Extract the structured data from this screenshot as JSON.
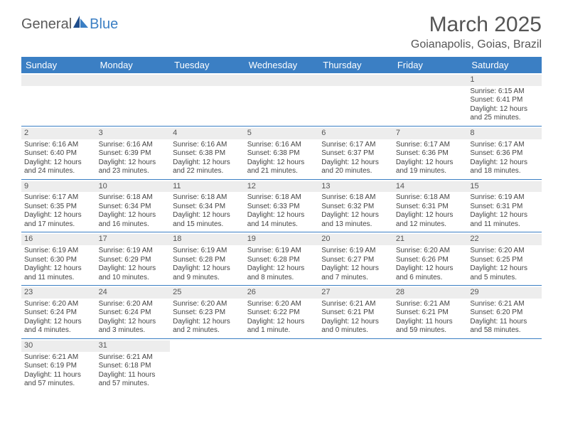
{
  "logo": {
    "text1": "General",
    "text2": "Blue"
  },
  "title": "March 2025",
  "location": "Goianapolis, Goias, Brazil",
  "colors": {
    "header_bg": "#3b7fc4",
    "header_fg": "#ffffff",
    "daynum_bg": "#ededed",
    "row_border": "#3b7fc4",
    "text": "#444444"
  },
  "weekdays": [
    "Sunday",
    "Monday",
    "Tuesday",
    "Wednesday",
    "Thursday",
    "Friday",
    "Saturday"
  ],
  "weeks": [
    [
      null,
      null,
      null,
      null,
      null,
      null,
      {
        "n": "1",
        "sr": "Sunrise: 6:15 AM",
        "ss": "Sunset: 6:41 PM",
        "d1": "Daylight: 12 hours",
        "d2": "and 25 minutes."
      }
    ],
    [
      {
        "n": "2",
        "sr": "Sunrise: 6:16 AM",
        "ss": "Sunset: 6:40 PM",
        "d1": "Daylight: 12 hours",
        "d2": "and 24 minutes."
      },
      {
        "n": "3",
        "sr": "Sunrise: 6:16 AM",
        "ss": "Sunset: 6:39 PM",
        "d1": "Daylight: 12 hours",
        "d2": "and 23 minutes."
      },
      {
        "n": "4",
        "sr": "Sunrise: 6:16 AM",
        "ss": "Sunset: 6:38 PM",
        "d1": "Daylight: 12 hours",
        "d2": "and 22 minutes."
      },
      {
        "n": "5",
        "sr": "Sunrise: 6:16 AM",
        "ss": "Sunset: 6:38 PM",
        "d1": "Daylight: 12 hours",
        "d2": "and 21 minutes."
      },
      {
        "n": "6",
        "sr": "Sunrise: 6:17 AM",
        "ss": "Sunset: 6:37 PM",
        "d1": "Daylight: 12 hours",
        "d2": "and 20 minutes."
      },
      {
        "n": "7",
        "sr": "Sunrise: 6:17 AM",
        "ss": "Sunset: 6:36 PM",
        "d1": "Daylight: 12 hours",
        "d2": "and 19 minutes."
      },
      {
        "n": "8",
        "sr": "Sunrise: 6:17 AM",
        "ss": "Sunset: 6:36 PM",
        "d1": "Daylight: 12 hours",
        "d2": "and 18 minutes."
      }
    ],
    [
      {
        "n": "9",
        "sr": "Sunrise: 6:17 AM",
        "ss": "Sunset: 6:35 PM",
        "d1": "Daylight: 12 hours",
        "d2": "and 17 minutes."
      },
      {
        "n": "10",
        "sr": "Sunrise: 6:18 AM",
        "ss": "Sunset: 6:34 PM",
        "d1": "Daylight: 12 hours",
        "d2": "and 16 minutes."
      },
      {
        "n": "11",
        "sr": "Sunrise: 6:18 AM",
        "ss": "Sunset: 6:34 PM",
        "d1": "Daylight: 12 hours",
        "d2": "and 15 minutes."
      },
      {
        "n": "12",
        "sr": "Sunrise: 6:18 AM",
        "ss": "Sunset: 6:33 PM",
        "d1": "Daylight: 12 hours",
        "d2": "and 14 minutes."
      },
      {
        "n": "13",
        "sr": "Sunrise: 6:18 AM",
        "ss": "Sunset: 6:32 PM",
        "d1": "Daylight: 12 hours",
        "d2": "and 13 minutes."
      },
      {
        "n": "14",
        "sr": "Sunrise: 6:18 AM",
        "ss": "Sunset: 6:31 PM",
        "d1": "Daylight: 12 hours",
        "d2": "and 12 minutes."
      },
      {
        "n": "15",
        "sr": "Sunrise: 6:19 AM",
        "ss": "Sunset: 6:31 PM",
        "d1": "Daylight: 12 hours",
        "d2": "and 11 minutes."
      }
    ],
    [
      {
        "n": "16",
        "sr": "Sunrise: 6:19 AM",
        "ss": "Sunset: 6:30 PM",
        "d1": "Daylight: 12 hours",
        "d2": "and 11 minutes."
      },
      {
        "n": "17",
        "sr": "Sunrise: 6:19 AM",
        "ss": "Sunset: 6:29 PM",
        "d1": "Daylight: 12 hours",
        "d2": "and 10 minutes."
      },
      {
        "n": "18",
        "sr": "Sunrise: 6:19 AM",
        "ss": "Sunset: 6:28 PM",
        "d1": "Daylight: 12 hours",
        "d2": "and 9 minutes."
      },
      {
        "n": "19",
        "sr": "Sunrise: 6:19 AM",
        "ss": "Sunset: 6:28 PM",
        "d1": "Daylight: 12 hours",
        "d2": "and 8 minutes."
      },
      {
        "n": "20",
        "sr": "Sunrise: 6:19 AM",
        "ss": "Sunset: 6:27 PM",
        "d1": "Daylight: 12 hours",
        "d2": "and 7 minutes."
      },
      {
        "n": "21",
        "sr": "Sunrise: 6:20 AM",
        "ss": "Sunset: 6:26 PM",
        "d1": "Daylight: 12 hours",
        "d2": "and 6 minutes."
      },
      {
        "n": "22",
        "sr": "Sunrise: 6:20 AM",
        "ss": "Sunset: 6:25 PM",
        "d1": "Daylight: 12 hours",
        "d2": "and 5 minutes."
      }
    ],
    [
      {
        "n": "23",
        "sr": "Sunrise: 6:20 AM",
        "ss": "Sunset: 6:24 PM",
        "d1": "Daylight: 12 hours",
        "d2": "and 4 minutes."
      },
      {
        "n": "24",
        "sr": "Sunrise: 6:20 AM",
        "ss": "Sunset: 6:24 PM",
        "d1": "Daylight: 12 hours",
        "d2": "and 3 minutes."
      },
      {
        "n": "25",
        "sr": "Sunrise: 6:20 AM",
        "ss": "Sunset: 6:23 PM",
        "d1": "Daylight: 12 hours",
        "d2": "and 2 minutes."
      },
      {
        "n": "26",
        "sr": "Sunrise: 6:20 AM",
        "ss": "Sunset: 6:22 PM",
        "d1": "Daylight: 12 hours",
        "d2": "and 1 minute."
      },
      {
        "n": "27",
        "sr": "Sunrise: 6:21 AM",
        "ss": "Sunset: 6:21 PM",
        "d1": "Daylight: 12 hours",
        "d2": "and 0 minutes."
      },
      {
        "n": "28",
        "sr": "Sunrise: 6:21 AM",
        "ss": "Sunset: 6:21 PM",
        "d1": "Daylight: 11 hours",
        "d2": "and 59 minutes."
      },
      {
        "n": "29",
        "sr": "Sunrise: 6:21 AM",
        "ss": "Sunset: 6:20 PM",
        "d1": "Daylight: 11 hours",
        "d2": "and 58 minutes."
      }
    ],
    [
      {
        "n": "30",
        "sr": "Sunrise: 6:21 AM",
        "ss": "Sunset: 6:19 PM",
        "d1": "Daylight: 11 hours",
        "d2": "and 57 minutes."
      },
      {
        "n": "31",
        "sr": "Sunrise: 6:21 AM",
        "ss": "Sunset: 6:18 PM",
        "d1": "Daylight: 11 hours",
        "d2": "and 57 minutes."
      },
      null,
      null,
      null,
      null,
      null
    ]
  ]
}
